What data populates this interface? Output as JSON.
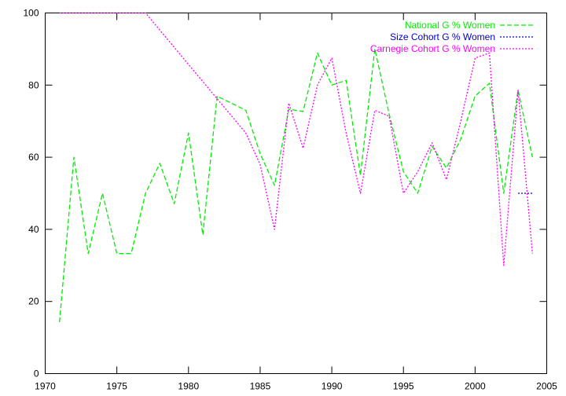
{
  "chart_data": {
    "type": "line",
    "title": "",
    "xlabel": "",
    "ylabel": "",
    "xlim": [
      1970,
      2005
    ],
    "ylim": [
      0,
      100
    ],
    "xticks": [
      1970,
      1975,
      1980,
      1985,
      1990,
      1995,
      2000,
      2005
    ],
    "yticks": [
      0,
      20,
      40,
      60,
      80,
      100
    ],
    "grid": false,
    "legend_position": "top-right",
    "series": [
      {
        "name": "National G % Women",
        "color": "#00ee00",
        "dash": "dashed",
        "x": [
          1971,
          1972,
          1973,
          1974,
          1975,
          1976,
          1977,
          1978,
          1979,
          1980,
          1981,
          1982,
          1983,
          1984,
          1985,
          1986,
          1987,
          1988,
          1989,
          1990,
          1991,
          1992,
          1993,
          1994,
          1995,
          1996,
          1997,
          1998,
          1999,
          2000,
          2001,
          2002,
          2003,
          2004
        ],
        "values": [
          14.3,
          60,
          33.3,
          50,
          33.3,
          33.3,
          50,
          58.3,
          47.1,
          66.7,
          38.5,
          76.9,
          75,
          73,
          61,
          52.2,
          73.3,
          72.7,
          88.9,
          80,
          81.3,
          55,
          90,
          72,
          56,
          50,
          63,
          57,
          65,
          77,
          80.5,
          50,
          78.6,
          60
        ]
      },
      {
        "name": "Size Cohort G % Women",
        "color": "#0000cc",
        "dash": "dotted",
        "x": [
          2003,
          2004
        ],
        "values": [
          50,
          50
        ]
      },
      {
        "name": "Carnegie Cohort G % Women",
        "color": "#ff00ff",
        "dash": "dotted",
        "x": [
          1971,
          1977,
          1984,
          1985,
          1986,
          1987,
          1988,
          1989,
          1990,
          1991,
          1992,
          1993,
          1994,
          1995,
          1996,
          1997,
          1998,
          1999,
          2000,
          2001,
          2002,
          2003,
          2004
        ],
        "values": [
          100,
          100,
          66.7,
          58,
          40,
          75,
          62.5,
          80,
          87.5,
          66.7,
          50,
          73,
          71.4,
          50,
          56,
          64,
          53.8,
          70,
          87.5,
          88.9,
          30,
          78.6,
          33.3
        ]
      }
    ]
  }
}
